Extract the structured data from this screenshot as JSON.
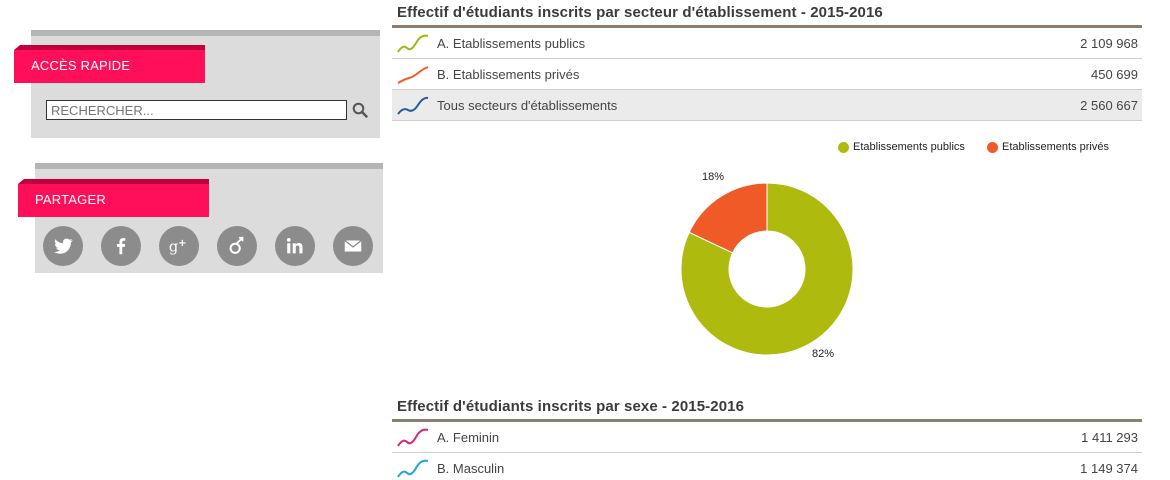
{
  "sidebar": {
    "quick_access_label": "ACCÈS RAPIDE",
    "search_placeholder": "RECHERCHER...",
    "share_label": "PARTAGER",
    "share_icons": [
      "twitter-icon",
      "facebook-icon",
      "google-plus-icon",
      "viadeo-icon",
      "linkedin-icon",
      "mail-icon"
    ]
  },
  "section1": {
    "title": "Effectif d'étudiants inscrits par secteur d'établissement - 2015-2016",
    "rows": [
      {
        "label": "A. Etablissements publics",
        "value": "2 109 968",
        "color": "#a3b514"
      },
      {
        "label": "B. Etablissements privés",
        "value": "450 699",
        "color": "#ef5a26"
      },
      {
        "label": "Tous secteurs d'établissements",
        "value": "2 560 667",
        "color": "#1f5f9e"
      }
    ]
  },
  "chart_data": {
    "type": "pie",
    "donut": true,
    "categories": [
      "Etablissements publics",
      "Etablissements privés"
    ],
    "values": [
      82,
      18
    ],
    "labels": [
      "82%",
      "18%"
    ],
    "colors": [
      "#afba0f",
      "#ef5a27"
    ],
    "legend": "top-right"
  },
  "section2": {
    "title": "Effectif d'étudiants inscrits par sexe - 2015-2016",
    "rows": [
      {
        "label": "A. Feminin",
        "value": "1 411 293",
        "color": "#d6267a"
      },
      {
        "label": "B. Masculin",
        "value": "1 149 374",
        "color": "#1ea7d8"
      }
    ]
  }
}
